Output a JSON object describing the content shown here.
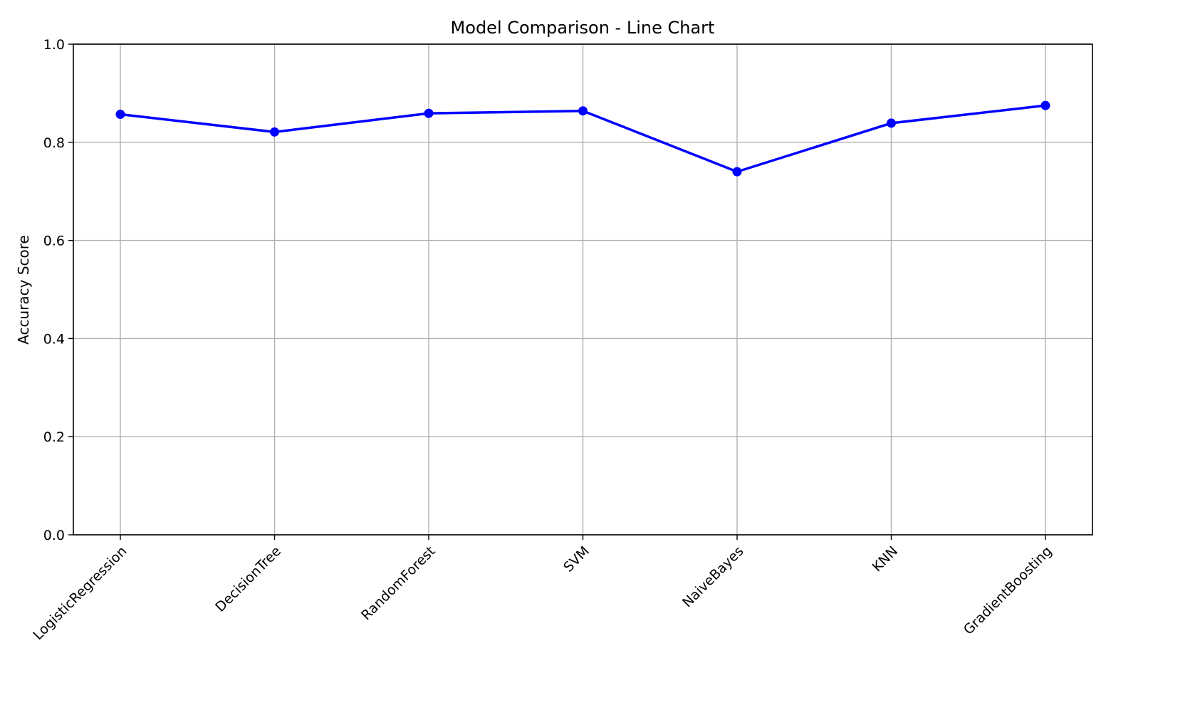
{
  "chart_data": {
    "type": "line",
    "title": "Model Comparison - Line Chart",
    "xlabel": "",
    "ylabel": "Accuracy Score",
    "categories": [
      "LogisticRegression",
      "DecisionTree",
      "RandomForest",
      "SVM",
      "NaiveBayes",
      "KNN",
      "GradientBoosting"
    ],
    "series": [
      {
        "values": [
          0.857,
          0.821,
          0.859,
          0.864,
          0.74,
          0.839,
          0.875
        ]
      }
    ],
    "ylim": [
      0.0,
      1.0
    ],
    "yticks": [
      0.0,
      0.2,
      0.4,
      0.6,
      0.8,
      1.0
    ],
    "ytick_labels": [
      "0.0",
      "0.2",
      "0.4",
      "0.6",
      "0.8",
      "1.0"
    ],
    "grid": true,
    "line_color": "#0000ff",
    "grid_color": "#b0b0b0",
    "x_tick_rotation_deg": 45
  }
}
